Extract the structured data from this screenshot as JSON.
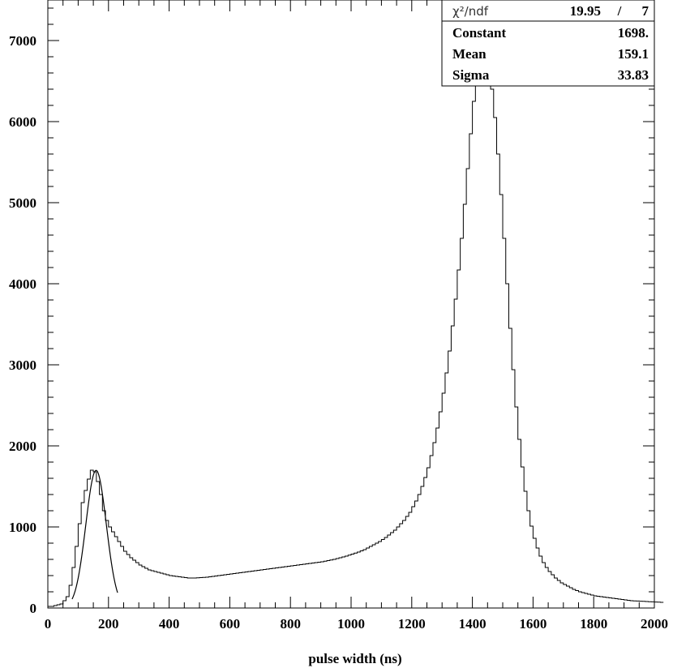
{
  "chart_data": {
    "type": "line",
    "xlabel": "pulse width (ns)",
    "ylabel": "",
    "xlim": [
      0,
      2000
    ],
    "ylim": [
      0,
      7500
    ],
    "x_ticks": [
      0,
      200,
      400,
      600,
      800,
      1000,
      1200,
      1400,
      1600,
      1800,
      2000
    ],
    "y_ticks": [
      0,
      1000,
      2000,
      3000,
      4000,
      5000,
      6000,
      7000
    ],
    "grid": false,
    "histogram": {
      "bin_width": 10,
      "x_start": 0,
      "counts": [
        20,
        20,
        30,
        40,
        50,
        90,
        140,
        280,
        500,
        760,
        1040,
        1300,
        1450,
        1590,
        1700,
        1680,
        1560,
        1400,
        1200,
        1080,
        1000,
        940,
        880,
        820,
        760,
        700,
        660,
        620,
        590,
        560,
        530,
        510,
        490,
        470,
        460,
        450,
        440,
        430,
        420,
        410,
        400,
        395,
        390,
        385,
        380,
        375,
        370,
        370,
        370,
        372,
        375,
        378,
        380,
        385,
        390,
        395,
        400,
        405,
        410,
        415,
        420,
        425,
        430,
        435,
        440,
        445,
        450,
        455,
        460,
        465,
        470,
        475,
        480,
        485,
        490,
        495,
        500,
        505,
        510,
        515,
        520,
        525,
        530,
        535,
        540,
        545,
        550,
        555,
        560,
        565,
        570,
        578,
        585,
        592,
        600,
        610,
        620,
        630,
        640,
        652,
        665,
        678,
        690,
        705,
        720,
        740,
        760,
        780,
        800,
        820,
        845,
        870,
        900,
        930,
        960,
        1000,
        1040,
        1080,
        1130,
        1180,
        1250,
        1320,
        1400,
        1500,
        1610,
        1730,
        1880,
        2040,
        2220,
        2420,
        2650,
        2900,
        3170,
        3480,
        3810,
        4170,
        4560,
        4980,
        5420,
        5850,
        6250,
        6560,
        6800,
        6870,
        6800,
        6650,
        6400,
        6050,
        5600,
        5100,
        4560,
        4000,
        3450,
        2940,
        2480,
        2080,
        1740,
        1440,
        1200,
        1010,
        860,
        740,
        640,
        560,
        500,
        450,
        410,
        370,
        340,
        310,
        290,
        270,
        250,
        230,
        215,
        200,
        190,
        180,
        170,
        160,
        150,
        145,
        140,
        135,
        130,
        125,
        120,
        115,
        110,
        105,
        100,
        95,
        90,
        88,
        86,
        84,
        82,
        80,
        78,
        76,
        74,
        72,
        70
      ]
    },
    "fit": {
      "name": "gaus",
      "constant": 1698,
      "mean": 159.1,
      "sigma": 33.83,
      "x_range": [
        80,
        230
      ]
    },
    "stats_box": {
      "chi2_label": "χ²/ndf",
      "chi2_value": "19.95",
      "chi2_sep": "/",
      "ndf": "7",
      "rows": [
        {
          "label": "Constant",
          "value": "1698."
        },
        {
          "label": "Mean",
          "value": "159.1"
        },
        {
          "label": "Sigma",
          "value": "33.83"
        }
      ]
    }
  }
}
